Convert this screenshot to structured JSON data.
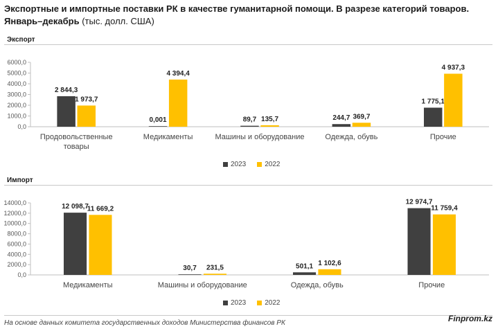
{
  "title_bold_1": "Экспортные и импортные поставки РК в качестве гуманитарной помощи. В разрезе категорий товаров.",
  "title_bold_2": "Январь–декабрь",
  "title_unit": " (тыс. долл. США)",
  "footer_note": "На основе данных комитета государственных доходов Министерства финансов РК",
  "brand": "Finprom.kz",
  "colors": {
    "series_2023": "#404040",
    "series_2022": "#FFC000"
  },
  "chart_data": [
    {
      "type": "bar",
      "title": "Экспорт",
      "categories": [
        [
          "Продовольственные",
          "товары"
        ],
        [
          "Медикаменты"
        ],
        [
          "Машины и оборудование"
        ],
        [
          "Одежда, обувь"
        ],
        [
          "Прочие"
        ]
      ],
      "series": [
        {
          "name": "2023",
          "values": [
            2844.3,
            0.001,
            89.7,
            244.7,
            1775.1
          ],
          "labels": [
            "2 844,3",
            "0,001",
            "89,7",
            "244,7",
            "1 775,1"
          ]
        },
        {
          "name": "2022",
          "values": [
            1973.7,
            4394.4,
            135.7,
            369.7,
            4937.3
          ],
          "labels": [
            "1 973,7",
            "4 394,4",
            "135,7",
            "369,7",
            "4 937,3"
          ]
        }
      ],
      "ylim": [
        0,
        6000
      ],
      "yticks": [
        0,
        1000,
        2000,
        3000,
        4000,
        5000,
        6000
      ],
      "ytick_labels": [
        "0,0",
        "1000,0",
        "2000,0",
        "3000,0",
        "4000,0",
        "5000,0",
        "6000,0"
      ],
      "legend": [
        "2023",
        "2022"
      ]
    },
    {
      "type": "bar",
      "title": "Импорт",
      "categories": [
        [
          "Медикаменты"
        ],
        [
          "Машины и оборудование"
        ],
        [
          "Одежда, обувь"
        ],
        [
          "Прочие"
        ]
      ],
      "series": [
        {
          "name": "2023",
          "values": [
            12098.7,
            30.7,
            501.1,
            12974.7
          ],
          "labels": [
            "12 098,7",
            "30,7",
            "501,1",
            "12 974,7"
          ]
        },
        {
          "name": "2022",
          "values": [
            11669.2,
            231.5,
            1102.6,
            11759.4
          ],
          "labels": [
            "11 669,2",
            "231,5",
            "1 102,6",
            "11 759,4"
          ]
        }
      ],
      "ylim": [
        0,
        14000
      ],
      "yticks": [
        0,
        2000,
        4000,
        6000,
        8000,
        10000,
        12000,
        14000
      ],
      "ytick_labels": [
        "0,0",
        "2000,0",
        "4000,0",
        "6000,0",
        "8000,0",
        "10000,0",
        "12000,0",
        "14000,0"
      ],
      "legend": [
        "2023",
        "2022"
      ]
    }
  ]
}
